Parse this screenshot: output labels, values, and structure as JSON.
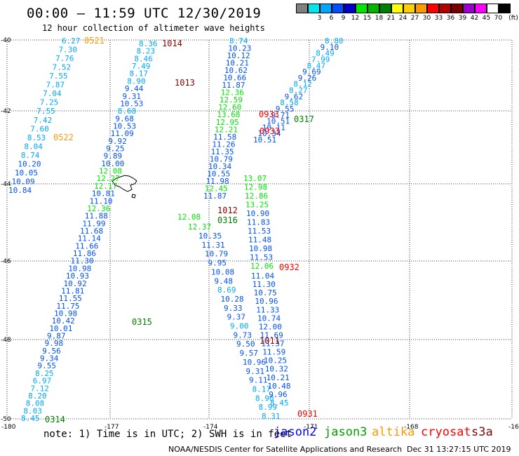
{
  "header": {
    "title": "00:00 – 11:59 UTC 12/30/2019",
    "subtitle": "12 hour collection of altimeter wave heights"
  },
  "scale": {
    "unit": "(ft)",
    "swatches": [
      {
        "color": "#808080",
        "label": ""
      },
      {
        "color": "#00e5ee",
        "label": "3"
      },
      {
        "color": "#00a8ff",
        "label": "6"
      },
      {
        "color": "#0050ff",
        "label": "9"
      },
      {
        "color": "#0000c8",
        "label": "12"
      },
      {
        "color": "#00e800",
        "label": "15"
      },
      {
        "color": "#00b400",
        "label": "18"
      },
      {
        "color": "#008000",
        "label": "21"
      },
      {
        "color": "#ffff00",
        "label": "24"
      },
      {
        "color": "#ffd000",
        "label": "27"
      },
      {
        "color": "#ff9900",
        "label": "30"
      },
      {
        "color": "#ff0000",
        "label": "33"
      },
      {
        "color": "#b00000",
        "label": "36"
      },
      {
        "color": "#7a0000",
        "label": "39"
      },
      {
        "color": "#9900cc",
        "label": "42"
      },
      {
        "color": "#ff00ff",
        "label": "45"
      },
      {
        "color": "#ffffff",
        "label": "70"
      },
      {
        "color": "#000000",
        "label": ""
      }
    ]
  },
  "map": {
    "lon_ticks": [
      "-180",
      "-177",
      "-174",
      "-171",
      "-168",
      "-16"
    ],
    "lat_ticks": [
      "-40",
      "-42",
      "-44",
      "-46",
      "-48",
      "-50"
    ],
    "tracks": {
      "t0314": [
        {
          "v": "6.27",
          "c": "#00a8ff"
        },
        {
          "v": "7.30",
          "c": "#00a8ff"
        },
        {
          "v": "7.76",
          "c": "#00a8ff"
        },
        {
          "v": "7.52",
          "c": "#00a8ff"
        },
        {
          "v": "7.55",
          "c": "#00a8ff"
        },
        {
          "v": "7.87",
          "c": "#00a8ff"
        },
        {
          "v": "7.04",
          "c": "#00a8ff"
        },
        {
          "v": "7.25",
          "c": "#00a8ff"
        },
        {
          "v": "7.55",
          "c": "#00a8ff"
        },
        {
          "v": "7.42",
          "c": "#00a8ff"
        },
        {
          "v": "7.60",
          "c": "#00a8ff"
        },
        {
          "v": "8.53",
          "c": "#00a8ff"
        },
        {
          "v": "8.04",
          "c": "#00a8ff"
        },
        {
          "v": "8.74",
          "c": "#00a8ff"
        },
        {
          "v": "10.20",
          "c": "#0050ff"
        },
        {
          "v": "10.05",
          "c": "#0050ff"
        },
        {
          "v": "10.09",
          "c": "#0050ff"
        },
        {
          "v": "10.84",
          "c": "#0050ff"
        }
      ],
      "t1014": [
        {
          "v": "8.36",
          "c": "#00a8ff"
        },
        {
          "v": "8.23",
          "c": "#00a8ff"
        },
        {
          "v": "8.46",
          "c": "#00a8ff"
        },
        {
          "v": "7.49",
          "c": "#00a8ff"
        },
        {
          "v": "8.17",
          "c": "#00a8ff"
        },
        {
          "v": "8.90",
          "c": "#00a8ff"
        },
        {
          "v": "9.44",
          "c": "#0050ff"
        },
        {
          "v": "9.31",
          "c": "#0050ff"
        },
        {
          "v": "10.53",
          "c": "#0050ff"
        },
        {
          "v": "8.68",
          "c": "#00a8ff"
        },
        {
          "v": "9.68",
          "c": "#0050ff"
        },
        {
          "v": "10.53",
          "c": "#0050ff"
        },
        {
          "v": "11.09",
          "c": "#0050ff"
        },
        {
          "v": "9.92",
          "c": "#0050ff"
        },
        {
          "v": "9.25",
          "c": "#0050ff"
        },
        {
          "v": "9.89",
          "c": "#0050ff"
        },
        {
          "v": "10.00",
          "c": "#0050ff"
        },
        {
          "v": "12.08",
          "c": "#00e800"
        },
        {
          "v": "12.27",
          "c": "#00e800"
        },
        {
          "v": "12.17",
          "c": "#00e800"
        },
        {
          "v": "10.81",
          "c": "#0050ff"
        },
        {
          "v": "11.10",
          "c": "#0050ff"
        },
        {
          "v": "12.36",
          "c": "#00e800"
        },
        {
          "v": "11.88",
          "c": "#0050ff"
        },
        {
          "v": "11.99",
          "c": "#0050ff"
        },
        {
          "v": "11.68",
          "c": "#0050ff"
        },
        {
          "v": "11.14",
          "c": "#0050ff"
        },
        {
          "v": "11.66",
          "c": "#0050ff"
        },
        {
          "v": "11.86",
          "c": "#0050ff"
        },
        {
          "v": "11.30",
          "c": "#0050ff"
        },
        {
          "v": "10.98",
          "c": "#0050ff"
        },
        {
          "v": "10.93",
          "c": "#0050ff"
        },
        {
          "v": "10.92",
          "c": "#0050ff"
        },
        {
          "v": "11.81",
          "c": "#0050ff"
        },
        {
          "v": "11.55",
          "c": "#0050ff"
        },
        {
          "v": "11.75",
          "c": "#0050ff"
        },
        {
          "v": "10.98",
          "c": "#0050ff"
        },
        {
          "v": "10.42",
          "c": "#0050ff"
        },
        {
          "v": "10.01",
          "c": "#0050ff"
        },
        {
          "v": "9.87",
          "c": "#0050ff"
        },
        {
          "v": "9.98",
          "c": "#0050ff"
        },
        {
          "v": "9.56",
          "c": "#0050ff"
        },
        {
          "v": "9.34",
          "c": "#0050ff"
        },
        {
          "v": "9.55",
          "c": "#0050ff"
        },
        {
          "v": "8.25",
          "c": "#00a8ff"
        },
        {
          "v": "6.97",
          "c": "#00a8ff"
        },
        {
          "v": "7.12",
          "c": "#00a8ff"
        },
        {
          "v": "8.20",
          "c": "#00a8ff"
        },
        {
          "v": "8.08",
          "c": "#00a8ff"
        },
        {
          "v": "8.03",
          "c": "#00a8ff"
        },
        {
          "v": "8.45",
          "c": "#00a8ff"
        }
      ],
      "t1013": [
        {
          "v": "8.74",
          "c": "#00a8ff"
        },
        {
          "v": "10.23",
          "c": "#0050ff"
        },
        {
          "v": "10.12",
          "c": "#0050ff"
        },
        {
          "v": "10.21",
          "c": "#0050ff"
        },
        {
          "v": "10.62",
          "c": "#0050ff"
        },
        {
          "v": "10.66",
          "c": "#0050ff"
        },
        {
          "v": "11.87",
          "c": "#0050ff"
        },
        {
          "v": "12.36",
          "c": "#00e800"
        },
        {
          "v": "12.59",
          "c": "#00e800"
        },
        {
          "v": "12.60",
          "c": "#00e800"
        },
        {
          "v": "13.68",
          "c": "#00e800"
        },
        {
          "v": "12.95",
          "c": "#00e800"
        },
        {
          "v": "12.21",
          "c": "#00e800"
        },
        {
          "v": "11.58",
          "c": "#0050ff"
        },
        {
          "v": "11.26",
          "c": "#0050ff"
        },
        {
          "v": "11.35",
          "c": "#0050ff"
        },
        {
          "v": "10.79",
          "c": "#0050ff"
        },
        {
          "v": "10.34",
          "c": "#0050ff"
        },
        {
          "v": "10.55",
          "c": "#0050ff"
        },
        {
          "v": "11.98",
          "c": "#0050ff"
        },
        {
          "v": "12.45",
          "c": "#00e800"
        },
        {
          "v": "11.87",
          "c": "#0050ff"
        }
      ],
      "t0932": [
        {
          "v": "13.07",
          "c": "#00e800"
        },
        {
          "v": "12.98",
          "c": "#00e800"
        },
        {
          "v": "12.86",
          "c": "#00e800"
        },
        {
          "v": "13.25",
          "c": "#00e800"
        },
        {
          "v": "10.90",
          "c": "#0050ff"
        },
        {
          "v": "11.83",
          "c": "#0050ff"
        },
        {
          "v": "11.53",
          "c": "#0050ff"
        },
        {
          "v": "11.48",
          "c": "#0050ff"
        },
        {
          "v": "10.98",
          "c": "#0050ff"
        },
        {
          "v": "11.53",
          "c": "#0050ff"
        },
        {
          "v": "12.06",
          "c": "#00e800"
        }
      ],
      "t1011": [
        {
          "v": "10.35",
          "c": "#0050ff"
        },
        {
          "v": "11.31",
          "c": "#0050ff"
        },
        {
          "v": "10.79",
          "c": "#0050ff"
        },
        {
          "v": "9.95",
          "c": "#0050ff"
        },
        {
          "v": "10.08",
          "c": "#0050ff"
        },
        {
          "v": "9.48",
          "c": "#0050ff"
        },
        {
          "v": "8.69",
          "c": "#00a8ff"
        },
        {
          "v": "10.28",
          "c": "#0050ff"
        },
        {
          "v": "9.33",
          "c": "#0050ff"
        },
        {
          "v": "9.37",
          "c": "#0050ff"
        },
        {
          "v": "9.00",
          "c": "#00a8ff"
        },
        {
          "v": "9.73",
          "c": "#0050ff"
        },
        {
          "v": "9.50",
          "c": "#0050ff"
        },
        {
          "v": "9.57",
          "c": "#0050ff"
        },
        {
          "v": "10.96",
          "c": "#0050ff"
        },
        {
          "v": "9.31",
          "c": "#0050ff"
        },
        {
          "v": "9.11",
          "c": "#0050ff"
        },
        {
          "v": "8.17",
          "c": "#00a8ff"
        },
        {
          "v": "8.90",
          "c": "#00a8ff"
        },
        {
          "v": "8.99",
          "c": "#00a8ff"
        },
        {
          "v": "8.31",
          "c": "#00a8ff"
        }
      ],
      "t0931": [
        {
          "v": "11.04",
          "c": "#0050ff"
        },
        {
          "v": "11.30",
          "c": "#0050ff"
        },
        {
          "v": "10.75",
          "c": "#0050ff"
        },
        {
          "v": "10.96",
          "c": "#0050ff"
        },
        {
          "v": "11.33",
          "c": "#0050ff"
        },
        {
          "v": "10.74",
          "c": "#0050ff"
        },
        {
          "v": "12.00",
          "c": "#0050ff"
        },
        {
          "v": "11.69",
          "c": "#0050ff"
        },
        {
          "v": "11.37",
          "c": "#0050ff"
        },
        {
          "v": "11.59",
          "c": "#0050ff"
        },
        {
          "v": "10.25",
          "c": "#0050ff"
        },
        {
          "v": "10.32",
          "c": "#0050ff"
        },
        {
          "v": "10.21",
          "c": "#0050ff"
        },
        {
          "v": "10.48",
          "c": "#0050ff"
        },
        {
          "v": "9.96",
          "c": "#0050ff"
        },
        {
          "v": "8.45",
          "c": "#00a8ff"
        }
      ],
      "t0317": [
        {
          "v": "8.80",
          "c": "#00a8ff"
        },
        {
          "v": "9.10",
          "c": "#0050ff"
        },
        {
          "v": "8.49",
          "c": "#00a8ff"
        },
        {
          "v": "7.99",
          "c": "#00a8ff"
        },
        {
          "v": "8.47",
          "c": "#00a8ff"
        },
        {
          "v": "9.69",
          "c": "#0050ff"
        },
        {
          "v": "9.26",
          "c": "#0050ff"
        },
        {
          "v": "8.12",
          "c": "#00a8ff"
        },
        {
          "v": "8.27",
          "c": "#00a8ff"
        },
        {
          "v": "9.62",
          "c": "#0050ff"
        },
        {
          "v": "8.58",
          "c": "#00a8ff"
        },
        {
          "v": "9.55",
          "c": "#0050ff"
        },
        {
          "v": "9.71",
          "c": "#0050ff"
        },
        {
          "v": "10.51",
          "c": "#0050ff"
        },
        {
          "v": "10.11",
          "c": "#0050ff"
        },
        {
          "v": "10.34",
          "c": "#0050ff"
        },
        {
          "v": "10.51",
          "c": "#0050ff"
        }
      ],
      "t0316": [
        {
          "v": "12.08",
          "c": "#00e800"
        },
        {
          "v": "12.37",
          "c": "#00e800"
        }
      ]
    },
    "time_labels": [
      {
        "t": "0521",
        "c": "#ff9900"
      },
      {
        "t": "1014",
        "c": "#8b0000"
      },
      {
        "t": "1013",
        "c": "#8b0000"
      },
      {
        "t": "0522",
        "c": "#ff9900"
      },
      {
        "t": "0933",
        "c": "#ff0000"
      },
      {
        "t": "0317",
        "c": "#008000"
      },
      {
        "t": "0933",
        "c": "#ff0000"
      },
      {
        "t": "1012",
        "c": "#8b0000"
      },
      {
        "t": "0316",
        "c": "#008000"
      },
      {
        "t": "0932",
        "c": "#ff0000"
      },
      {
        "t": "0315",
        "c": "#008000"
      },
      {
        "t": "1011",
        "c": "#8b0000"
      },
      {
        "t": "0931",
        "c": "#ff0000"
      },
      {
        "t": "0314",
        "c": "#008000"
      }
    ]
  },
  "footer": {
    "note": "note: 1) Time is in UTC; 2) SWH is in feet",
    "satellites": [
      {
        "name": "jason2",
        "color": "#0000ff"
      },
      {
        "name": "jason3",
        "color": "#00a000"
      },
      {
        "name": "altika",
        "color": "#ff9900"
      },
      {
        "name": "cryosat",
        "color": "#ff0000"
      },
      {
        "name": "s3a",
        "color": "#8b0000"
      }
    ],
    "credit": "NOAA/NESDIS Center for Satellite Applications and Research",
    "timestamp": "Dec 31 13:27:15 UTC 2019"
  }
}
